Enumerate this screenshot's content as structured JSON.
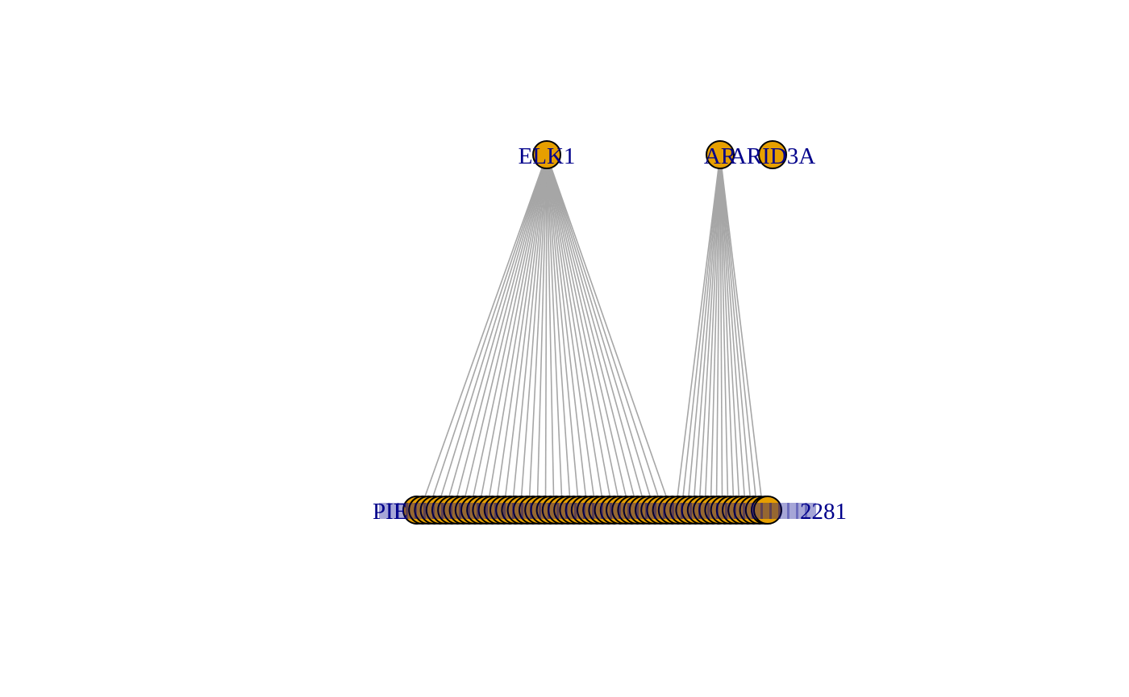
{
  "colors": {
    "background": "#ffffff",
    "edge": "#a6a6a6",
    "node_fill": "#e69f00",
    "node_stroke": "#000000",
    "label": "#00008b"
  },
  "graph": {
    "hubs": [
      {
        "id": "ELK1",
        "label": "ELK1"
      },
      {
        "id": "AR",
        "label": "AR"
      },
      {
        "id": "ARID3A",
        "label": "ARID3A"
      }
    ],
    "targets": {
      "visible_left_label": "PIE",
      "visible_right_label": "2281",
      "elk1_target_count": 31,
      "ar_target_count": 16
    }
  }
}
